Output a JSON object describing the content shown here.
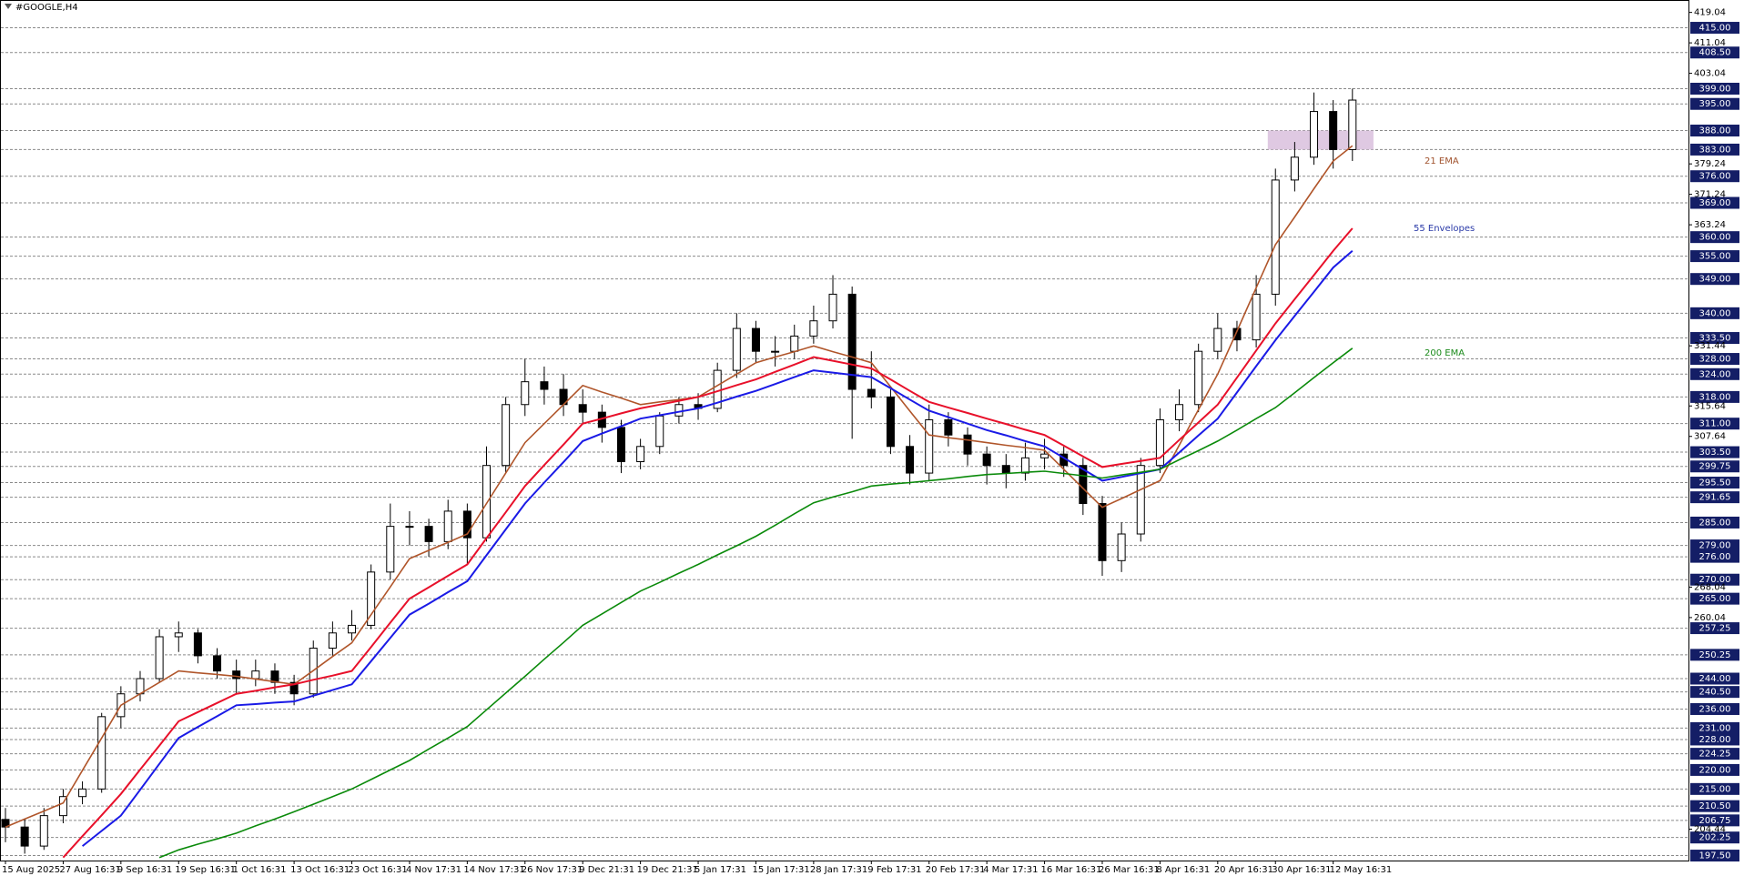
{
  "chart_data": {
    "type": "candlestick",
    "title": "#GOOGLE,H4",
    "ylim": [
      196.2,
      422.3
    ],
    "yticks": [
      419.04,
      411.04,
      403.04,
      379.24,
      371.24,
      363.24,
      331.44,
      315.64,
      307.64,
      268.04,
      260.04,
      204.44
    ],
    "levels": [
      {
        "value": 415,
        "label": "415.00"
      },
      {
        "value": 408.5,
        "label": "408.50"
      },
      {
        "value": 399,
        "label": "399.00"
      },
      {
        "value": 395,
        "label": "395.00"
      },
      {
        "value": 388,
        "label": "388.00"
      },
      {
        "value": 383,
        "label": "383.00"
      },
      {
        "value": 376,
        "label": "376.00"
      },
      {
        "value": 369,
        "label": "369.00"
      },
      {
        "value": 360,
        "label": "360.00"
      },
      {
        "value": 355,
        "label": "355.00"
      },
      {
        "value": 349,
        "label": "349.00"
      },
      {
        "value": 340,
        "label": "340.00"
      },
      {
        "value": 333.5,
        "label": "333.50"
      },
      {
        "value": 328,
        "label": "328.00"
      },
      {
        "value": 324,
        "label": "324.00"
      },
      {
        "value": 318,
        "label": "318.00"
      },
      {
        "value": 311,
        "label": "311.00"
      },
      {
        "value": 303.5,
        "label": "303.50"
      },
      {
        "value": 299.75,
        "label": "299.75"
      },
      {
        "value": 295.5,
        "label": "295.50"
      },
      {
        "value": 291.65,
        "label": "291.65"
      },
      {
        "value": 285,
        "label": "285.00"
      },
      {
        "value": 279,
        "label": "279.00"
      },
      {
        "value": 276,
        "label": "276.00"
      },
      {
        "value": 270,
        "label": "270.00"
      },
      {
        "value": 265,
        "label": "265.00"
      },
      {
        "value": 257.25,
        "label": "257.25"
      },
      {
        "value": 250.25,
        "label": "250.25"
      },
      {
        "value": 244,
        "label": "244.00"
      },
      {
        "value": 240.5,
        "label": "240.50"
      },
      {
        "value": 236,
        "label": "236.00"
      },
      {
        "value": 231,
        "label": "231.00"
      },
      {
        "value": 228,
        "label": "228.00"
      },
      {
        "value": 224.25,
        "label": "224.25"
      },
      {
        "value": 220,
        "label": "220.00"
      },
      {
        "value": 215,
        "label": "215.00"
      },
      {
        "value": 210.5,
        "label": "210.50"
      },
      {
        "value": 206.75,
        "label": "206.75"
      },
      {
        "value": 202.25,
        "label": "202.25"
      },
      {
        "value": 197.5,
        "label": "197.50"
      }
    ],
    "zone": {
      "values": [
        383,
        388
      ],
      "color": "#d9bfdd"
    },
    "categories": [
      "15 Aug 2025",
      null,
      null,
      "27 Aug 16:31",
      null,
      null,
      "9 Sep 16:31",
      null,
      null,
      "19 Sep 16:31",
      null,
      null,
      "1 Oct 16:31",
      null,
      null,
      "13 Oct 16:31",
      null,
      null,
      "23 Oct 16:31",
      null,
      null,
      "4 Nov 17:31",
      null,
      null,
      "14 Nov 17:31",
      null,
      null,
      "26 Nov 17:31",
      null,
      null,
      "9 Dec 21:31",
      null,
      null,
      "19 Dec 21:31",
      null,
      null,
      "5 Jan 17:31",
      null,
      null,
      "15 Jan 17:31",
      null,
      null,
      "28 Jan 17:31",
      null,
      null,
      "9 Feb 17:31",
      null,
      null,
      "20 Feb 17:31",
      null,
      null,
      "4 Mar 17:31",
      null,
      null,
      "16 Mar 16:31",
      null,
      null,
      "26 Mar 16:31",
      null,
      null,
      "8 Apr 16:31",
      null,
      null,
      "20 Apr 16:31",
      null,
      null,
      "30 Apr 16:31",
      null,
      null,
      "12 May 16:31",
      null
    ],
    "ohlc": [
      [
        207,
        210,
        201,
        205
      ],
      [
        205,
        207,
        198,
        200
      ],
      [
        200,
        210,
        199,
        208
      ],
      [
        208,
        215,
        206,
        213
      ],
      [
        213,
        217,
        211,
        215
      ],
      [
        215,
        235,
        214,
        234
      ],
      [
        234,
        242,
        231,
        240
      ],
      [
        240,
        246,
        238,
        244
      ],
      [
        244,
        257,
        243,
        255
      ],
      [
        255,
        259,
        251,
        256
      ],
      [
        256,
        257,
        248,
        250
      ],
      [
        250,
        252,
        244,
        246
      ],
      [
        246,
        249,
        240,
        244
      ],
      [
        244,
        249,
        242,
        246
      ],
      [
        246,
        248,
        240,
        243
      ],
      [
        243,
        245,
        237,
        240
      ],
      [
        240,
        254,
        239,
        252
      ],
      [
        252,
        259,
        250,
        256
      ],
      [
        256,
        262,
        254,
        258
      ],
      [
        258,
        274,
        257,
        272
      ],
      [
        272,
        290,
        270,
        284
      ],
      [
        284,
        288,
        279,
        284
      ],
      [
        284,
        286,
        276,
        280
      ],
      [
        280,
        291,
        278,
        288
      ],
      [
        288,
        290,
        274,
        281
      ],
      [
        281,
        305,
        280,
        300
      ],
      [
        300,
        318,
        298,
        316
      ],
      [
        316,
        328,
        313,
        322
      ],
      [
        322,
        326,
        316,
        320
      ],
      [
        320,
        324,
        313,
        316
      ],
      [
        316,
        320,
        311,
        314
      ],
      [
        314,
        316,
        306,
        310
      ],
      [
        310,
        312,
        298,
        301
      ],
      [
        301,
        307,
        299,
        305
      ],
      [
        305,
        314,
        303,
        313
      ],
      [
        313,
        318,
        311,
        316
      ],
      [
        316,
        319,
        312,
        315
      ],
      [
        315,
        327,
        314,
        325
      ],
      [
        325,
        340,
        323,
        336
      ],
      [
        336,
        338,
        327,
        330
      ],
      [
        330,
        334,
        326,
        330
      ],
      [
        330,
        337,
        328,
        334
      ],
      [
        334,
        342,
        332,
        338
      ],
      [
        338,
        350,
        336,
        345
      ],
      [
        345,
        347,
        307,
        320
      ],
      [
        320,
        330,
        315,
        318
      ],
      [
        318,
        320,
        303,
        305
      ],
      [
        305,
        308,
        295,
        298
      ],
      [
        298,
        316,
        296,
        312
      ],
      [
        312,
        314,
        305,
        308
      ],
      [
        308,
        310,
        300,
        303
      ],
      [
        303,
        305,
        295,
        300
      ],
      [
        300,
        303,
        294,
        298
      ],
      [
        298,
        306,
        296,
        302
      ],
      [
        302,
        307,
        299,
        303
      ],
      [
        303,
        305,
        297,
        300
      ],
      [
        300,
        302,
        287,
        290
      ],
      [
        290,
        292,
        271,
        275
      ],
      [
        275,
        285,
        272,
        282
      ],
      [
        282,
        302,
        280,
        300
      ],
      [
        300,
        315,
        298,
        312
      ],
      [
        312,
        320,
        309,
        316
      ],
      [
        316,
        332,
        314,
        330
      ],
      [
        330,
        340,
        328,
        336
      ],
      [
        336,
        338,
        330,
        333
      ],
      [
        333,
        350,
        331,
        345
      ],
      [
        345,
        378,
        342,
        375
      ],
      [
        375,
        385,
        372,
        381
      ],
      [
        381,
        398,
        379,
        393
      ],
      [
        393,
        396,
        378,
        383
      ],
      [
        383,
        399,
        380,
        396
      ]
    ],
    "series": [
      {
        "name": "21 EMA",
        "color": "#b0552a",
        "label_color": "#a0522d",
        "values": [
          205,
          207.1,
          209.2,
          211.3,
          219.9,
          228.4,
          237,
          240,
          243,
          246,
          245.5,
          245.1,
          244.6,
          243.9,
          243.2,
          242.5,
          246.1,
          249.8,
          253.4,
          260.8,
          268.1,
          275.5,
          277.7,
          279.8,
          282,
          290,
          298,
          306,
          311,
          316,
          321,
          319.3,
          317.7,
          316,
          316.7,
          317.3,
          318,
          321,
          324,
          327,
          328.5,
          329.9,
          331.4,
          329.9,
          328.5,
          327,
          320.7,
          314.3,
          308,
          307.3,
          306.7,
          306,
          305.3,
          304.7,
          304,
          299,
          294,
          289,
          291.3,
          293.7,
          296,
          305.3,
          314.7,
          324,
          335.3,
          346.7,
          358,
          365.3,
          372.7,
          380,
          384
        ]
      },
      {
        "name": "55 Envelopes",
        "label_color": "#2a3aa8",
        "upper": {
          "color": "#e8102a",
          "values": [
            null,
            null,
            null,
            197,
            202.6,
            208.1,
            213.7,
            220.1,
            226.4,
            232.8,
            235.2,
            237.6,
            240,
            240.8,
            241.7,
            242.5,
            243.7,
            244.8,
            246,
            252.3,
            258.7,
            265,
            268,
            271,
            274,
            280.9,
            287.7,
            294.6,
            300.1,
            305.5,
            311,
            312.3,
            313.7,
            315,
            316,
            317,
            318,
            319.5,
            321.1,
            322.6,
            324.6,
            326.5,
            328.5,
            327.5,
            326.5,
            325.5,
            322.6,
            319.6,
            316.7,
            315.2,
            313.8,
            312.3,
            310.9,
            309.4,
            308,
            305.2,
            302.4,
            299.6,
            300.4,
            301.2,
            302,
            306.7,
            311.3,
            316,
            323.1,
            330.2,
            337.3,
            343.7,
            350,
            356.4,
            362.3
          ]
        },
        "lower": {
          "color": "#1a1ae6",
          "values": [
            null,
            null,
            null,
            null,
            200,
            204,
            208,
            214.8,
            221.6,
            228.4,
            231.3,
            234.1,
            237,
            237.3,
            237.7,
            238,
            239.5,
            241,
            242.5,
            248.6,
            254.7,
            260.8,
            263.7,
            266.7,
            269.6,
            276.4,
            283.2,
            290,
            295.5,
            300.9,
            306.4,
            308.4,
            310.3,
            312.3,
            313.2,
            314.1,
            315,
            316.5,
            318.1,
            319.6,
            321.4,
            323.2,
            325,
            324.4,
            323.8,
            323.2,
            320.3,
            317.3,
            314.4,
            312.7,
            311,
            309.3,
            307.9,
            306.4,
            305,
            302,
            299,
            296,
            297,
            298,
            299,
            303.4,
            307.9,
            312.3,
            319.2,
            326.1,
            332.9,
            339.3,
            345.6,
            352,
            356.4
          ]
        }
      },
      {
        "name": "200 EMA",
        "color": "#0a8a0a",
        "label_color": "#1a8a1a",
        "values": [
          null,
          null,
          null,
          null,
          null,
          null,
          null,
          null,
          197,
          199,
          200.5,
          201.9,
          203.4,
          205.3,
          207.1,
          209,
          211,
          213,
          215,
          217.5,
          220,
          222.5,
          225.5,
          228.4,
          231.4,
          235.8,
          240.2,
          244.6,
          249.1,
          253.5,
          258,
          261,
          264,
          267,
          269.3,
          271.7,
          274,
          276.5,
          278.9,
          281.4,
          284.3,
          287.3,
          290.2,
          291.7,
          293.1,
          294.6,
          295.1,
          295.5,
          296,
          296.5,
          297.1,
          297.6,
          297.9,
          298.2,
          298.5,
          297.9,
          297.3,
          296.7,
          297.5,
          298.2,
          299,
          301.5,
          303.9,
          306.4,
          309.3,
          312.3,
          315.2,
          319.1,
          323.1,
          327,
          330.8
        ]
      }
    ]
  }
}
